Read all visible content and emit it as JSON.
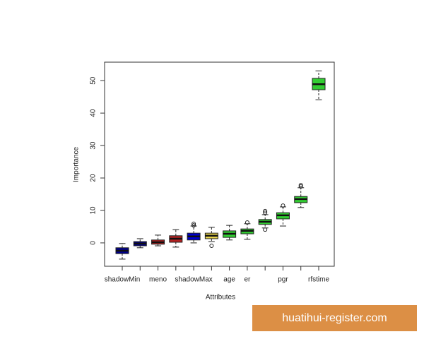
{
  "chart_data": {
    "type": "boxplot",
    "xlabel": "Attributes",
    "ylabel": "Importance",
    "categories": [
      "shadowMin",
      null,
      "meno",
      null,
      "shadowMax",
      null,
      "age",
      "er",
      null,
      "pgr",
      null,
      "rfstime"
    ],
    "boxes": [
      {
        "low": -5,
        "q1": -3.3,
        "median": -2.4,
        "q3": -1.5,
        "high": -0.2,
        "outliers": [],
        "color": "#00008b"
      },
      {
        "low": -1.5,
        "q1": -0.9,
        "median": -0.2,
        "q3": 0.4,
        "high": 1.3,
        "outliers": [],
        "color": "#00008b"
      },
      {
        "low": -0.9,
        "q1": -0.4,
        "median": 0.2,
        "q3": 0.9,
        "high": 2.4,
        "outliers": [],
        "color": "#b22222"
      },
      {
        "low": -1.3,
        "q1": 0.2,
        "median": 1.3,
        "q3": 2.2,
        "high": 4.1,
        "outliers": [],
        "color": "#b22222"
      },
      {
        "low": 0,
        "q1": 0.9,
        "median": 2.0,
        "q3": 3.0,
        "high": 5.2,
        "outliers": [
          5.4,
          5.9
        ],
        "color": "#0000cd"
      },
      {
        "low": 0.4,
        "q1": 1.3,
        "median": 2.2,
        "q3": 3.0,
        "high": 4.8,
        "outliers": [
          -0.9
        ],
        "color": "#e8d44d"
      },
      {
        "low": 0.9,
        "q1": 1.7,
        "median": 2.8,
        "q3": 3.7,
        "high": 5.4,
        "outliers": [],
        "color": "#32cd32"
      },
      {
        "low": 1.1,
        "q1": 2.8,
        "median": 3.7,
        "q3": 4.3,
        "high": 5.9,
        "outliers": [
          6.3
        ],
        "color": "#32cd32"
      },
      {
        "low": 4.6,
        "q1": 5.7,
        "median": 6.5,
        "q3": 7.2,
        "high": 8.7,
        "outliers": [
          9.3,
          9.8,
          4.1
        ],
        "color": "#32cd32"
      },
      {
        "low": 5.2,
        "q1": 7.4,
        "median": 8.5,
        "q3": 9.3,
        "high": 11.1,
        "outliers": [
          11.5
        ],
        "color": "#32cd32"
      },
      {
        "low": 10.9,
        "q1": 12.4,
        "median": 13.5,
        "q3": 14.3,
        "high": 17.0,
        "outliers": [
          17.4,
          17.8
        ],
        "color": "#32cd32"
      },
      {
        "low": 44.1,
        "q1": 47.2,
        "median": 48.9,
        "q3": 50.7,
        "high": 53.0,
        "outliers": [],
        "color": "#32cd32"
      }
    ],
    "ylim": [
      -7.2,
      55.7
    ],
    "yticks": [
      0,
      10,
      20,
      30,
      40,
      50
    ]
  },
  "watermark": "huatihui-register.com"
}
